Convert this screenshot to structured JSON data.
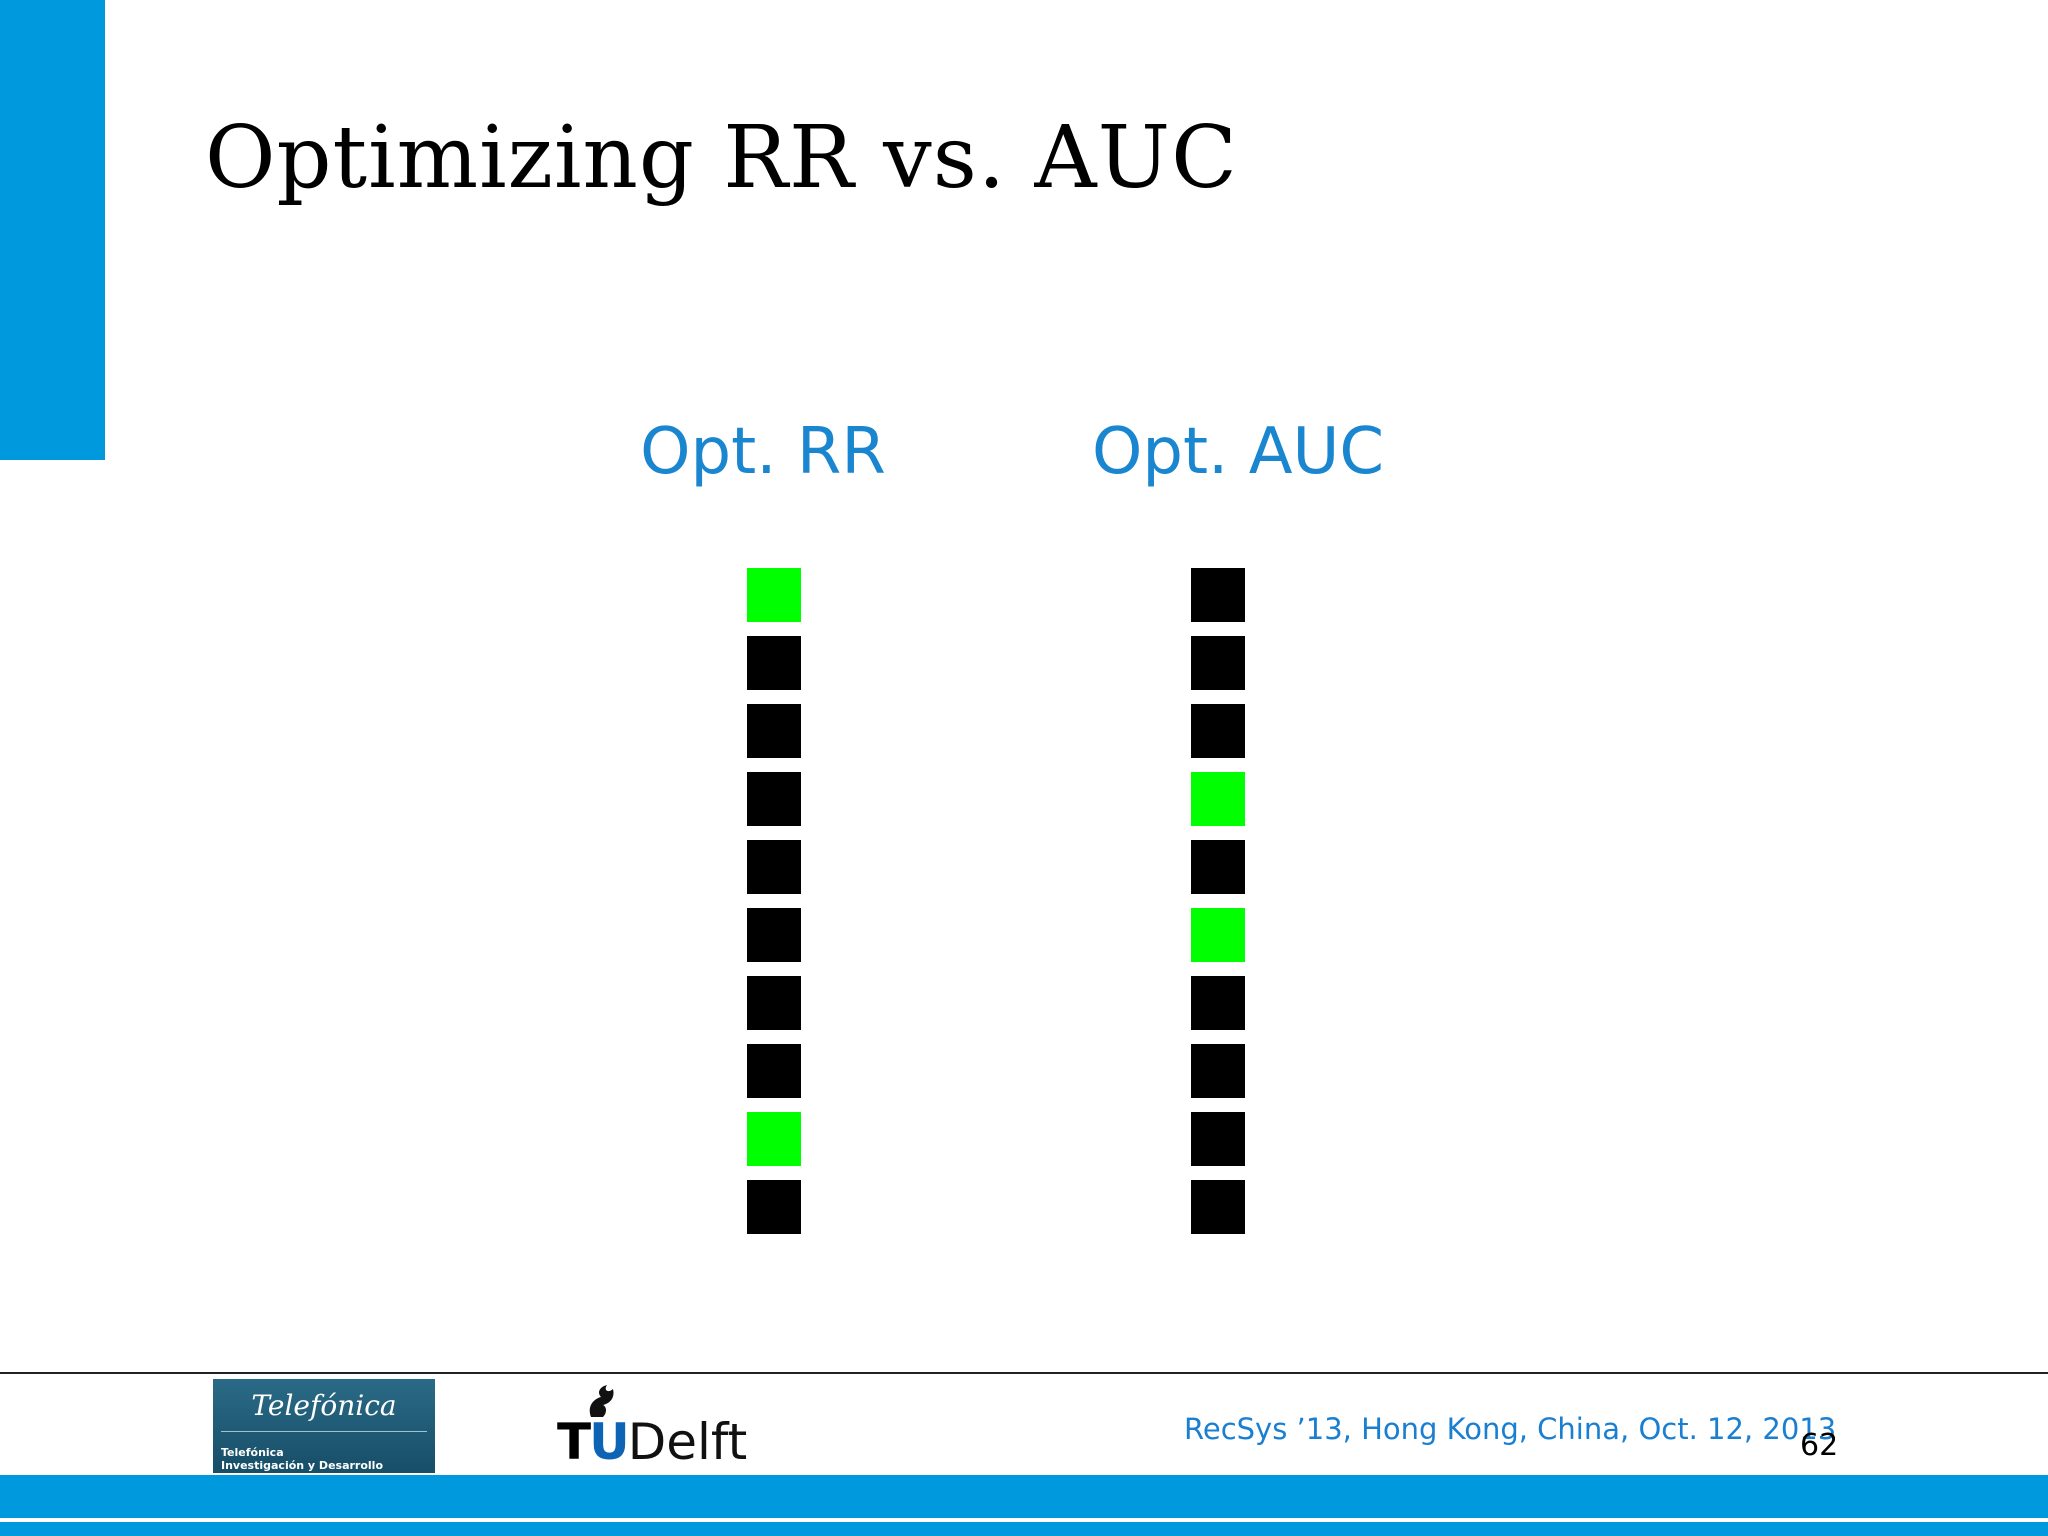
{
  "slide": {
    "title": "Optimizing RR vs. AUC",
    "page_number": "62",
    "footer_text": "RecSys ’13, Hong Kong, China, Oct. 12, 2013"
  },
  "columns": [
    {
      "label": "Opt. RR",
      "items": [
        true,
        false,
        false,
        false,
        false,
        false,
        false,
        false,
        true,
        false
      ]
    },
    {
      "label": "Opt. AUC",
      "items": [
        false,
        false,
        false,
        true,
        false,
        true,
        false,
        false,
        false,
        false
      ]
    }
  ],
  "legend_colors": {
    "relevant": "#00ff00",
    "non_relevant": "#000000",
    "accent": "#0099dd",
    "label_blue": "#1a86d0"
  },
  "logos": {
    "telefonica": {
      "brand": "Telefónica",
      "line1": "Telefónica",
      "line2": "Investigación y Desarrollo"
    },
    "tudelft": {
      "t": "T",
      "u": "U",
      "delft": "Delft"
    }
  }
}
